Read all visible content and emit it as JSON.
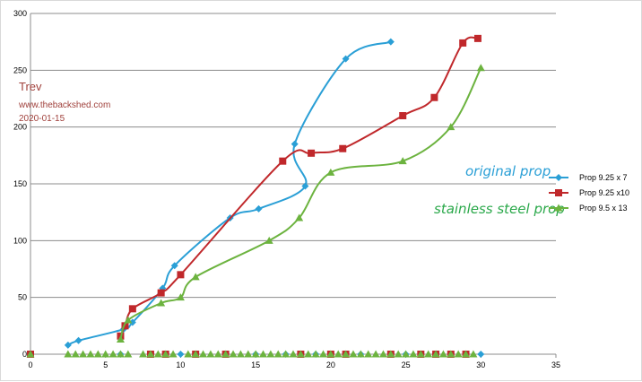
{
  "chart_data": {
    "type": "scatter",
    "title": "",
    "xlabel": "",
    "ylabel": "",
    "xlim": [
      0,
      35
    ],
    "ylim": [
      0,
      300
    ],
    "xticks": [
      0,
      5,
      10,
      15,
      20,
      25,
      30,
      35
    ],
    "yticks": [
      0,
      50,
      100,
      150,
      200,
      250,
      300
    ],
    "grid": "horizontal",
    "legend_position": "right",
    "notes": {
      "author": "Trev",
      "site": "www.thebackshed.com",
      "date": "2020-01-15"
    },
    "annotations": [
      {
        "text": "original prop",
        "color": "#2a9fd6"
      },
      {
        "text": "stainless steel prop",
        "color": "#2aa84a"
      }
    ],
    "series": [
      {
        "name": "Prop 9.25 x 7",
        "color": "#2a9fd6",
        "marker": "diamond",
        "points": [
          [
            2.5,
            8
          ],
          [
            3.2,
            12
          ],
          [
            6.2,
            22
          ],
          [
            6.8,
            28
          ],
          [
            8.8,
            58
          ],
          [
            9.6,
            78
          ],
          [
            13.3,
            120
          ],
          [
            15.2,
            128
          ],
          [
            18.3,
            148
          ],
          [
            17.6,
            185
          ],
          [
            21.0,
            260
          ],
          [
            24,
            275
          ]
        ],
        "zeros": [
          0,
          6,
          10,
          15,
          17,
          19,
          21,
          22,
          25,
          28,
          30
        ]
      },
      {
        "name": "Prop 9.25 x10",
        "color": "#c0282b",
        "marker": "square",
        "points": [
          [
            6.0,
            16
          ],
          [
            6.3,
            25
          ],
          [
            6.8,
            40
          ],
          [
            8.7,
            54
          ],
          [
            10.0,
            70
          ],
          [
            16.8,
            170
          ],
          [
            18.7,
            177
          ],
          [
            20.8,
            181
          ],
          [
            24.8,
            210
          ],
          [
            26.9,
            226
          ],
          [
            28.8,
            274
          ],
          [
            29.8,
            278
          ]
        ],
        "zeros": [
          0,
          8,
          9,
          11,
          13,
          18,
          20,
          21,
          24,
          26,
          27,
          28,
          29
        ]
      },
      {
        "name": "Prop 9.5 x 13",
        "color": "#6cb33f",
        "marker": "triangle",
        "points": [
          [
            6.0,
            13
          ],
          [
            6.5,
            30
          ],
          [
            8.7,
            45
          ],
          [
            10.0,
            50
          ],
          [
            11.0,
            68
          ],
          [
            15.9,
            100
          ],
          [
            17.9,
            120
          ],
          [
            20.0,
            160
          ],
          [
            24.8,
            170
          ],
          [
            28.0,
            200
          ],
          [
            30.0,
            252
          ]
        ],
        "zeros": [
          0,
          2.5,
          3,
          3.5,
          4,
          4.5,
          5,
          5.5,
          6,
          6.5,
          7.5,
          8,
          8.5,
          9,
          9.5,
          10.5,
          11,
          11.5,
          12,
          12.5,
          13,
          13.5,
          14,
          14.5,
          15,
          15.5,
          16,
          16.5,
          17,
          17.5,
          18,
          18.5,
          19,
          19.5,
          20,
          20.5,
          21,
          21.5,
          22,
          22.5,
          23,
          23.5,
          24,
          24.5,
          25,
          25.5,
          26,
          26.5,
          27,
          27.5,
          28,
          28.5,
          29,
          29.5
        ]
      }
    ]
  }
}
